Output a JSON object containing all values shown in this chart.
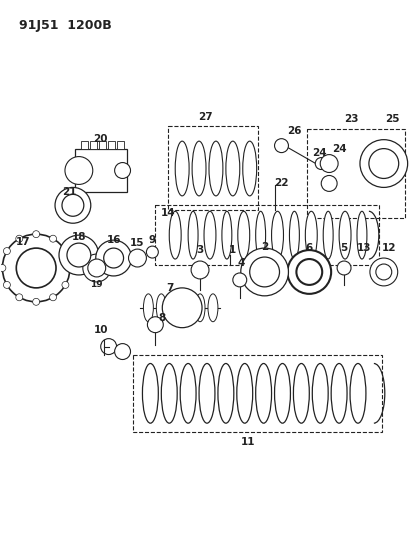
{
  "title": "91J51  1200B",
  "bg": "#ffffff",
  "lc": "#222222",
  "figsize": [
    4.14,
    5.33
  ],
  "dpi": 100
}
